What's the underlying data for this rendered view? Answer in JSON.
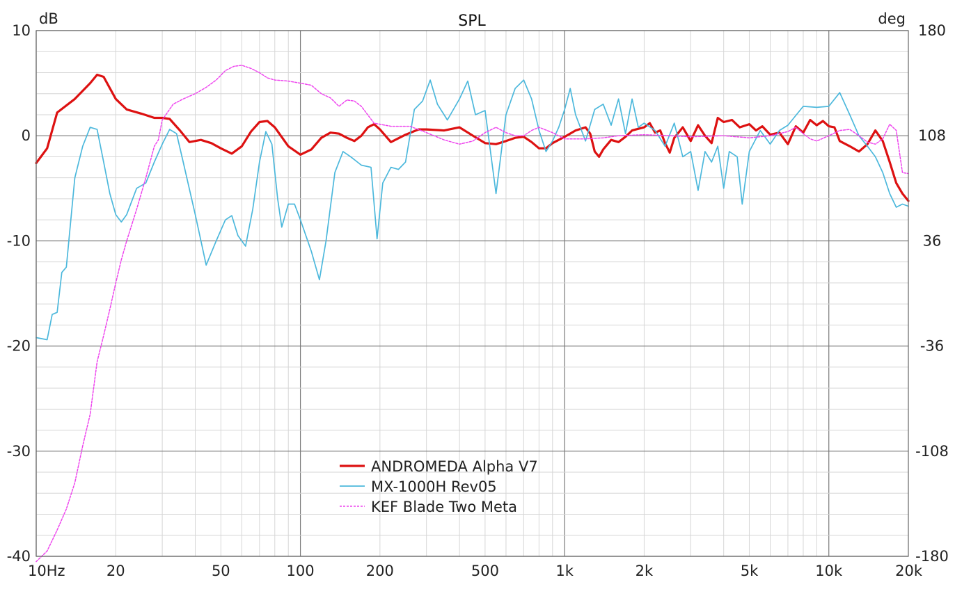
{
  "chart_data": {
    "type": "line",
    "title": "SPL",
    "ylabel_left": "dB",
    "ylabel_right": "deg",
    "x_scale": "log",
    "xlim": [
      10,
      20000
    ],
    "ylim": [
      -40,
      10
    ],
    "ylim_right": [
      -180,
      180
    ],
    "x_ticks": [
      {
        "value": 10,
        "label": "10Hz"
      },
      {
        "value": 20,
        "label": "20"
      },
      {
        "value": 50,
        "label": "50"
      },
      {
        "value": 100,
        "label": "100"
      },
      {
        "value": 200,
        "label": "200"
      },
      {
        "value": 500,
        "label": "500"
      },
      {
        "value": 1000,
        "label": "1k"
      },
      {
        "value": 2000,
        "label": "2k"
      },
      {
        "value": 5000,
        "label": "5k"
      },
      {
        "value": 10000,
        "label": "10k"
      },
      {
        "value": 20000,
        "label": "20k"
      }
    ],
    "y_ticks_left": [
      {
        "value": 10,
        "label": "10"
      },
      {
        "value": 0,
        "label": "0"
      },
      {
        "value": -10,
        "label": "-10"
      },
      {
        "value": -20,
        "label": "-20"
      },
      {
        "value": -30,
        "label": "-30"
      },
      {
        "value": -40,
        "label": "-40"
      }
    ],
    "y_ticks_right": [
      {
        "value": 180,
        "label": "180"
      },
      {
        "value": 108,
        "label": "108"
      },
      {
        "value": 36,
        "label": "36"
      },
      {
        "value": -36,
        "label": "-36"
      },
      {
        "value": -108,
        "label": "-108"
      },
      {
        "value": -180,
        "label": "-180"
      }
    ],
    "grid": true,
    "legend_position": "bottom-center",
    "series": [
      {
        "name": "ANDROMEDA Alpha V7",
        "color": "#dd1111",
        "style": "solid-thick",
        "points": [
          [
            10,
            -2.6
          ],
          [
            11,
            -1.2
          ],
          [
            12,
            2.2
          ],
          [
            14,
            3.5
          ],
          [
            16,
            5.0
          ],
          [
            17,
            5.8
          ],
          [
            18,
            5.6
          ],
          [
            20,
            3.5
          ],
          [
            22,
            2.5
          ],
          [
            25,
            2.1
          ],
          [
            28,
            1.7
          ],
          [
            30,
            1.7
          ],
          [
            32,
            1.6
          ],
          [
            35,
            0.5
          ],
          [
            38,
            -0.6
          ],
          [
            42,
            -0.4
          ],
          [
            46,
            -0.7
          ],
          [
            50,
            -1.2
          ],
          [
            55,
            -1.7
          ],
          [
            60,
            -1.0
          ],
          [
            65,
            0.4
          ],
          [
            70,
            1.3
          ],
          [
            75,
            1.4
          ],
          [
            80,
            0.8
          ],
          [
            90,
            -1.0
          ],
          [
            100,
            -1.8
          ],
          [
            110,
            -1.3
          ],
          [
            120,
            -0.2
          ],
          [
            130,
            0.3
          ],
          [
            140,
            0.2
          ],
          [
            150,
            -0.2
          ],
          [
            160,
            -0.5
          ],
          [
            170,
            0.0
          ],
          [
            180,
            0.8
          ],
          [
            190,
            1.1
          ],
          [
            200,
            0.6
          ],
          [
            220,
            -0.6
          ],
          [
            250,
            0.1
          ],
          [
            280,
            0.6
          ],
          [
            300,
            0.6
          ],
          [
            350,
            0.5
          ],
          [
            400,
            0.8
          ],
          [
            450,
            0.0
          ],
          [
            500,
            -0.7
          ],
          [
            550,
            -0.8
          ],
          [
            600,
            -0.5
          ],
          [
            650,
            -0.2
          ],
          [
            700,
            -0.1
          ],
          [
            750,
            -0.6
          ],
          [
            800,
            -1.2
          ],
          [
            850,
            -1.2
          ],
          [
            900,
            -0.7
          ],
          [
            1000,
            -0.1
          ],
          [
            1100,
            0.5
          ],
          [
            1200,
            0.8
          ],
          [
            1250,
            0.2
          ],
          [
            1300,
            -1.5
          ],
          [
            1350,
            -2.0
          ],
          [
            1400,
            -1.3
          ],
          [
            1500,
            -0.4
          ],
          [
            1600,
            -0.6
          ],
          [
            1700,
            -0.1
          ],
          [
            1800,
            0.5
          ],
          [
            2000,
            0.8
          ],
          [
            2100,
            1.2
          ],
          [
            2200,
            0.3
          ],
          [
            2300,
            0.5
          ],
          [
            2400,
            -0.7
          ],
          [
            2500,
            -1.6
          ],
          [
            2600,
            -0.2
          ],
          [
            2800,
            0.8
          ],
          [
            3000,
            -0.5
          ],
          [
            3200,
            1.0
          ],
          [
            3400,
            0.0
          ],
          [
            3600,
            -0.7
          ],
          [
            3800,
            1.7
          ],
          [
            4000,
            1.3
          ],
          [
            4300,
            1.5
          ],
          [
            4600,
            0.8
          ],
          [
            5000,
            1.1
          ],
          [
            5300,
            0.5
          ],
          [
            5600,
            0.9
          ],
          [
            6000,
            0.1
          ],
          [
            6500,
            0.3
          ],
          [
            7000,
            -0.8
          ],
          [
            7500,
            0.9
          ],
          [
            8000,
            0.3
          ],
          [
            8500,
            1.5
          ],
          [
            9000,
            1.0
          ],
          [
            9500,
            1.4
          ],
          [
            10000,
            0.9
          ],
          [
            10500,
            0.8
          ],
          [
            11000,
            -0.5
          ],
          [
            12000,
            -1.0
          ],
          [
            13000,
            -1.5
          ],
          [
            14000,
            -0.8
          ],
          [
            15000,
            0.5
          ],
          [
            16000,
            -0.5
          ],
          [
            17000,
            -2.5
          ],
          [
            18000,
            -4.5
          ],
          [
            19000,
            -5.5
          ],
          [
            20000,
            -6.2
          ]
        ]
      },
      {
        "name": "MX-1000H Rev05",
        "color": "#4cb8dc",
        "style": "solid",
        "points": [
          [
            10,
            -19.2
          ],
          [
            11,
            -19.4
          ],
          [
            11.5,
            -17.0
          ],
          [
            12,
            -16.8
          ],
          [
            12.5,
            -13.0
          ],
          [
            13,
            -12.5
          ],
          [
            14,
            -4.0
          ],
          [
            15,
            -1.0
          ],
          [
            16,
            0.8
          ],
          [
            17,
            0.6
          ],
          [
            18,
            -2.5
          ],
          [
            19,
            -5.5
          ],
          [
            20,
            -7.5
          ],
          [
            21,
            -8.2
          ],
          [
            22,
            -7.5
          ],
          [
            24,
            -5.0
          ],
          [
            26,
            -4.5
          ],
          [
            28,
            -2.5
          ],
          [
            30,
            -0.8
          ],
          [
            32,
            0.6
          ],
          [
            34,
            0.2
          ],
          [
            36,
            -2.5
          ],
          [
            40,
            -7.5
          ],
          [
            44,
            -12.3
          ],
          [
            48,
            -10.0
          ],
          [
            52,
            -8.0
          ],
          [
            55,
            -7.6
          ],
          [
            58,
            -9.5
          ],
          [
            62,
            -10.5
          ],
          [
            66,
            -7.0
          ],
          [
            70,
            -2.5
          ],
          [
            74,
            0.4
          ],
          [
            78,
            -0.8
          ],
          [
            82,
            -6.0
          ],
          [
            85,
            -8.7
          ],
          [
            90,
            -6.5
          ],
          [
            95,
            -6.5
          ],
          [
            100,
            -8.0
          ],
          [
            110,
            -11.0
          ],
          [
            118,
            -13.7
          ],
          [
            125,
            -10.0
          ],
          [
            135,
            -3.5
          ],
          [
            145,
            -1.5
          ],
          [
            155,
            -2.0
          ],
          [
            170,
            -2.8
          ],
          [
            185,
            -3.0
          ],
          [
            195,
            -9.8
          ],
          [
            205,
            -4.5
          ],
          [
            220,
            -3.0
          ],
          [
            235,
            -3.2
          ],
          [
            250,
            -2.5
          ],
          [
            270,
            2.5
          ],
          [
            290,
            3.3
          ],
          [
            310,
            5.3
          ],
          [
            330,
            3.0
          ],
          [
            360,
            1.5
          ],
          [
            400,
            3.5
          ],
          [
            430,
            5.2
          ],
          [
            460,
            2.0
          ],
          [
            500,
            2.4
          ],
          [
            550,
            -5.5
          ],
          [
            600,
            2.0
          ],
          [
            650,
            4.5
          ],
          [
            700,
            5.3
          ],
          [
            750,
            3.5
          ],
          [
            800,
            0.5
          ],
          [
            850,
            -1.5
          ],
          [
            900,
            -0.5
          ],
          [
            950,
            0.8
          ],
          [
            1000,
            2.5
          ],
          [
            1050,
            4.5
          ],
          [
            1100,
            2.0
          ],
          [
            1200,
            -0.5
          ],
          [
            1300,
            2.5
          ],
          [
            1400,
            3.0
          ],
          [
            1500,
            1.0
          ],
          [
            1600,
            3.5
          ],
          [
            1700,
            0.2
          ],
          [
            1800,
            3.5
          ],
          [
            1900,
            0.8
          ],
          [
            2000,
            1.2
          ],
          [
            2200,
            0.5
          ],
          [
            2400,
            -1.0
          ],
          [
            2600,
            1.2
          ],
          [
            2800,
            -2.0
          ],
          [
            3000,
            -1.5
          ],
          [
            3200,
            -5.2
          ],
          [
            3400,
            -1.5
          ],
          [
            3600,
            -2.5
          ],
          [
            3800,
            -1.0
          ],
          [
            4000,
            -5.0
          ],
          [
            4200,
            -1.5
          ],
          [
            4500,
            -2.0
          ],
          [
            4700,
            -6.5
          ],
          [
            5000,
            -1.5
          ],
          [
            5500,
            0.5
          ],
          [
            6000,
            -0.8
          ],
          [
            6500,
            0.5
          ],
          [
            7000,
            1.0
          ],
          [
            8000,
            2.8
          ],
          [
            9000,
            2.7
          ],
          [
            10000,
            2.8
          ],
          [
            11000,
            4.1
          ],
          [
            12000,
            2.0
          ],
          [
            13000,
            0.0
          ],
          [
            14000,
            -1.0
          ],
          [
            15000,
            -2.0
          ],
          [
            16000,
            -3.5
          ],
          [
            17000,
            -5.5
          ],
          [
            18000,
            -6.8
          ],
          [
            19000,
            -6.5
          ],
          [
            20000,
            -6.7
          ]
        ]
      },
      {
        "name": "KEF Blade Two Meta",
        "color": "#ee44ee",
        "style": "dashed",
        "points": [
          [
            10,
            -40.5
          ],
          [
            11,
            -39.5
          ],
          [
            12,
            -37.5
          ],
          [
            13,
            -35.5
          ],
          [
            14,
            -33.0
          ],
          [
            15,
            -29.5
          ],
          [
            16,
            -26.5
          ],
          [
            17,
            -21.5
          ],
          [
            18,
            -19.0
          ],
          [
            19,
            -16.5
          ],
          [
            20,
            -14.0
          ],
          [
            21,
            -11.8
          ],
          [
            22,
            -10.0
          ],
          [
            24,
            -7.0
          ],
          [
            26,
            -4.0
          ],
          [
            28,
            -1.0
          ],
          [
            29,
            -0.4
          ],
          [
            30,
            1.5
          ],
          [
            33,
            3.0
          ],
          [
            36,
            3.5
          ],
          [
            40,
            4.0
          ],
          [
            44,
            4.6
          ],
          [
            48,
            5.3
          ],
          [
            52,
            6.2
          ],
          [
            56,
            6.6
          ],
          [
            60,
            6.7
          ],
          [
            65,
            6.4
          ],
          [
            70,
            6.0
          ],
          [
            75,
            5.5
          ],
          [
            80,
            5.3
          ],
          [
            90,
            5.2
          ],
          [
            100,
            5.0
          ],
          [
            110,
            4.8
          ],
          [
            120,
            4.0
          ],
          [
            130,
            3.6
          ],
          [
            140,
            2.8
          ],
          [
            150,
            3.4
          ],
          [
            160,
            3.3
          ],
          [
            170,
            2.8
          ],
          [
            190,
            1.2
          ],
          [
            220,
            0.9
          ],
          [
            260,
            0.9
          ],
          [
            300,
            0.3
          ],
          [
            350,
            -0.4
          ],
          [
            400,
            -0.8
          ],
          [
            450,
            -0.5
          ],
          [
            500,
            0.3
          ],
          [
            550,
            0.8
          ],
          [
            600,
            0.3
          ],
          [
            650,
            0.0
          ],
          [
            700,
            0.0
          ],
          [
            750,
            0.5
          ],
          [
            800,
            0.8
          ],
          [
            900,
            0.3
          ],
          [
            1000,
            -0.3
          ],
          [
            1200,
            -0.3
          ],
          [
            1400,
            -0.2
          ],
          [
            1600,
            0.0
          ],
          [
            2000,
            0.1
          ],
          [
            2500,
            0.0
          ],
          [
            3000,
            -0.1
          ],
          [
            4000,
            0.0
          ],
          [
            5000,
            -0.2
          ],
          [
            6000,
            0.0
          ],
          [
            7000,
            0.4
          ],
          [
            7500,
            0.8
          ],
          [
            8000,
            0.2
          ],
          [
            8500,
            -0.3
          ],
          [
            9000,
            -0.5
          ],
          [
            10000,
            0.0
          ],
          [
            11000,
            0.5
          ],
          [
            12000,
            0.6
          ],
          [
            13000,
            0.0
          ],
          [
            14000,
            -0.6
          ],
          [
            15000,
            -0.8
          ],
          [
            16000,
            -0.3
          ],
          [
            17000,
            1.1
          ],
          [
            18000,
            0.5
          ],
          [
            19000,
            -3.5
          ],
          [
            20000,
            -3.6
          ]
        ]
      }
    ]
  }
}
